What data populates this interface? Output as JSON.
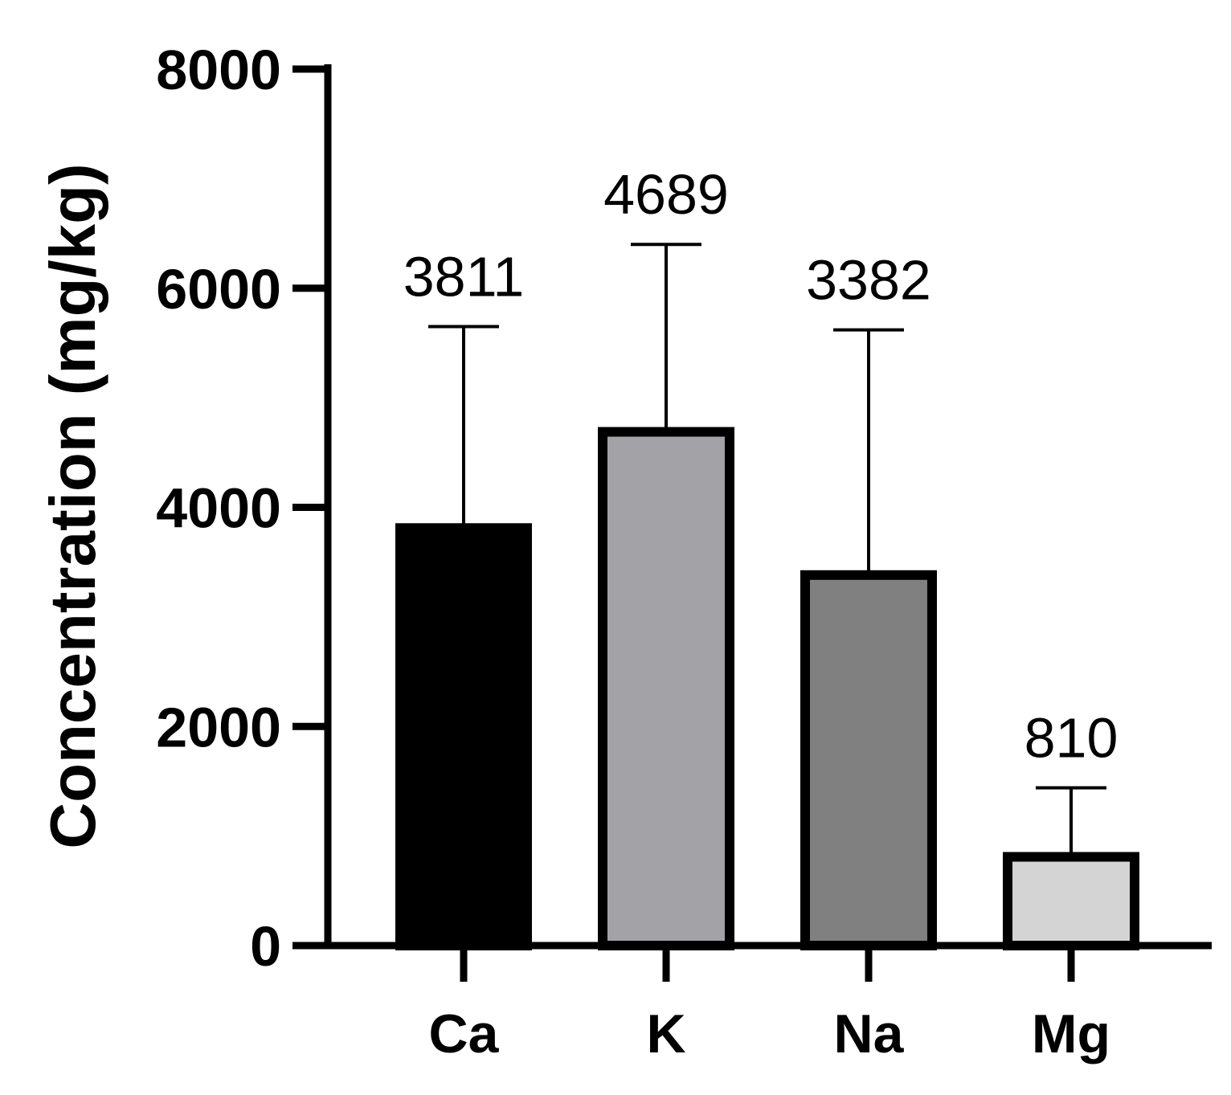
{
  "chart_data": {
    "type": "bar",
    "title": "",
    "xlabel": "",
    "ylabel": "Concentration (mg/kg)",
    "ylim": [
      0,
      8000
    ],
    "yticks": [
      0,
      2000,
      4000,
      6000,
      8000
    ],
    "categories": [
      "Ca",
      "K",
      "Na",
      "Mg"
    ],
    "values": [
      3811,
      4689,
      3382,
      810
    ],
    "error_upper": [
      5650,
      6400,
      5620,
      1440
    ],
    "data_labels": [
      "3811",
      "4689",
      "3382",
      "810"
    ],
    "colors": [
      "#000000",
      "#a3a2a7",
      "#808080",
      "#d4d4d4"
    ],
    "grid": false,
    "legend": "none"
  }
}
